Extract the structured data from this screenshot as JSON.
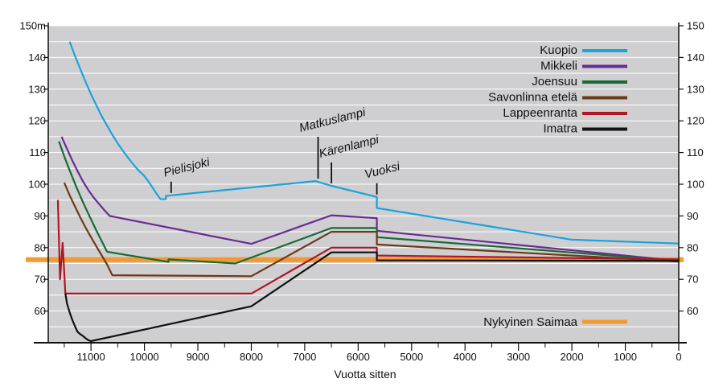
{
  "chart_data": {
    "type": "line",
    "xlabel": "Vuotta sitten",
    "ylabel_unit": "m",
    "xlim": [
      11800,
      0
    ],
    "ylim": [
      50,
      150
    ],
    "grid": true,
    "legend_placement": "top-right",
    "x_ticks": [
      {
        "value": 11000,
        "label": "11000"
      },
      {
        "value": 10000,
        "label": "10000"
      },
      {
        "value": 9000,
        "label": "9000"
      },
      {
        "value": 8000,
        "label": "8000"
      },
      {
        "value": 7000,
        "label": "7000"
      },
      {
        "value": 6000,
        "label": "6000"
      },
      {
        "value": 5000,
        "label": "5000"
      },
      {
        "value": 4000,
        "label": "4000"
      },
      {
        "value": 3000,
        "label": "3000"
      },
      {
        "value": 2000,
        "label": "2000"
      },
      {
        "value": 1000,
        "label": "1000"
      },
      {
        "value": 0,
        "label": "0"
      }
    ],
    "y_ticks_left": [
      {
        "value": 150,
        "label": "150m"
      },
      {
        "value": 140,
        "label": "140"
      },
      {
        "value": 130,
        "label": "130"
      },
      {
        "value": 120,
        "label": "120"
      },
      {
        "value": 110,
        "label": "110"
      },
      {
        "value": 100,
        "label": "100"
      },
      {
        "value": 90,
        "label": "90"
      },
      {
        "value": 80,
        "label": "80"
      },
      {
        "value": 70,
        "label": "70"
      },
      {
        "value": 60,
        "label": "60"
      }
    ],
    "y_ticks_right": [
      {
        "value": 150,
        "label": "150"
      },
      {
        "value": 140,
        "label": "140"
      },
      {
        "value": 130,
        "label": "130"
      },
      {
        "value": 120,
        "label": "120"
      },
      {
        "value": 110,
        "label": "110"
      },
      {
        "value": 100,
        "label": "100"
      },
      {
        "value": 90,
        "label": "90"
      },
      {
        "value": 80,
        "label": "80"
      },
      {
        "value": 70,
        "label": "70"
      },
      {
        "value": 60,
        "label": "60"
      }
    ],
    "series": [
      {
        "name": "Kuopio",
        "color": "#1aa3dc",
        "points": [
          [
            11400,
            145
          ],
          [
            11300,
            140.5
          ],
          [
            11200,
            136.3
          ],
          [
            11100,
            132.2
          ],
          [
            11000,
            128.4
          ],
          [
            10900,
            124.9
          ],
          [
            10800,
            121.5
          ],
          [
            10700,
            118.5
          ],
          [
            10600,
            115.6
          ],
          [
            10500,
            112.9
          ],
          [
            10400,
            110.5
          ],
          [
            10300,
            108.2
          ],
          [
            10200,
            106.1
          ],
          [
            10100,
            104.2
          ],
          [
            10000,
            102.6
          ],
          [
            9900,
            100.3
          ],
          [
            9800,
            97.7
          ],
          [
            9700,
            95.3
          ],
          [
            9600,
            95.3
          ],
          [
            9600,
            96.3
          ],
          [
            9500,
            96.5
          ],
          [
            6800,
            101
          ],
          [
            6500,
            99.5
          ],
          [
            5650,
            96
          ],
          [
            5650,
            92.5
          ],
          [
            2000,
            82.5
          ],
          [
            0,
            81.3
          ]
        ]
      },
      {
        "name": "Mikkeli",
        "color": "#6a2a94",
        "points": [
          [
            11550,
            115
          ],
          [
            11450,
            111.2
          ],
          [
            11350,
            107.5
          ],
          [
            11250,
            104.1
          ],
          [
            11150,
            100.9
          ],
          [
            11050,
            98.2
          ],
          [
            10950,
            95.8
          ],
          [
            10850,
            93.8
          ],
          [
            10750,
            91.8
          ],
          [
            10650,
            90
          ],
          [
            8000,
            81.2
          ],
          [
            6500,
            90.2
          ],
          [
            5650,
            89.3
          ],
          [
            5650,
            85.3
          ],
          [
            0,
            75.8
          ]
        ]
      },
      {
        "name": "Joensuu",
        "color": "#176a36",
        "points": [
          [
            11600,
            113.5
          ],
          [
            11500,
            108.8
          ],
          [
            11400,
            104.4
          ],
          [
            11300,
            100.2
          ],
          [
            11200,
            96.2
          ],
          [
            11100,
            92.5
          ],
          [
            11000,
            88.9
          ],
          [
            10900,
            85.4
          ],
          [
            10800,
            82.1
          ],
          [
            10700,
            78.7
          ],
          [
            9550,
            75.5
          ],
          [
            9550,
            76.3
          ],
          [
            8300,
            75
          ],
          [
            6500,
            86.2
          ],
          [
            5650,
            86.2
          ],
          [
            5650,
            83.3
          ],
          [
            0,
            75.8
          ]
        ]
      },
      {
        "name": "Savonlinna etelä",
        "color": "#6b3a17",
        "points": [
          [
            11500,
            100.5
          ],
          [
            11400,
            96.5
          ],
          [
            11300,
            93
          ],
          [
            11200,
            89.5
          ],
          [
            11100,
            86.3
          ],
          [
            11000,
            83.3
          ],
          [
            10900,
            80.4
          ],
          [
            10800,
            77.6
          ],
          [
            10700,
            74.7
          ],
          [
            10600,
            71.3
          ],
          [
            8000,
            71
          ],
          [
            6500,
            85
          ],
          [
            5650,
            85
          ],
          [
            5650,
            81
          ],
          [
            0,
            75.6
          ]
        ]
      },
      {
        "name": "Lappeenranta",
        "color": "#b01724",
        "points": [
          [
            11620,
            95
          ],
          [
            11580,
            70
          ],
          [
            11530,
            81.5
          ],
          [
            11480,
            65.5
          ],
          [
            8000,
            65.5
          ],
          [
            6500,
            80
          ],
          [
            5650,
            80
          ],
          [
            5650,
            77.5
          ],
          [
            0,
            76.3
          ]
        ]
      },
      {
        "name": "Imatra",
        "color": "#111111",
        "points": [
          [
            11480,
            65.5
          ],
          [
            11450,
            62.4
          ],
          [
            11400,
            59.6
          ],
          [
            11350,
            57.2
          ],
          [
            11300,
            55.2
          ],
          [
            11250,
            53.4
          ],
          [
            11200,
            52.7
          ],
          [
            11150,
            52.1
          ],
          [
            11100,
            51.4
          ],
          [
            11050,
            50.8
          ],
          [
            11000,
            50.5
          ],
          [
            8000,
            61.5
          ],
          [
            6500,
            78.5
          ],
          [
            5650,
            78.5
          ],
          [
            5650,
            76
          ],
          [
            0,
            75.8
          ]
        ]
      }
    ],
    "reference_line": {
      "name": "Nykyinen Saimaa",
      "value": 76.2,
      "color": "#f39a2e"
    },
    "annotations": [
      {
        "label": "Pielisjoki",
        "x": 9500,
        "y": 96.5
      },
      {
        "label": "Matkuslampi",
        "x": 6750,
        "y": 101
      },
      {
        "label": "Kärenlampi",
        "x": 6500,
        "y": 99.5
      },
      {
        "label": "Vuoksi",
        "x": 5650,
        "y": 96
      }
    ]
  }
}
